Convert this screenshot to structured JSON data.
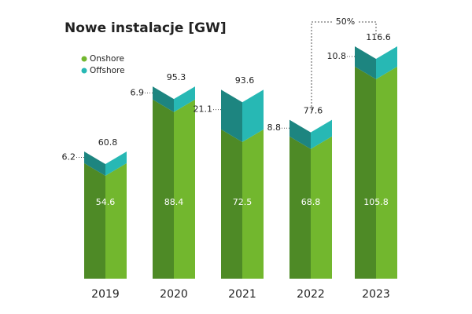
{
  "chart_data": {
    "type": "bar",
    "stacked": true,
    "title": "Nowe instalacje [GW]",
    "categories": [
      "2019",
      "2020",
      "2021",
      "2022",
      "2023"
    ],
    "series": [
      {
        "name": "Onshore",
        "color": "#72b72e",
        "values": [
          54.6,
          88.4,
          72.5,
          68.8,
          105.8
        ]
      },
      {
        "name": "Offshore",
        "color": "#27b8b4",
        "values": [
          6.2,
          6.9,
          21.1,
          8.8,
          10.8
        ]
      }
    ],
    "totals": [
      60.8,
      95.3,
      93.6,
      77.6,
      116.6
    ],
    "annotation": "50%"
  }
}
